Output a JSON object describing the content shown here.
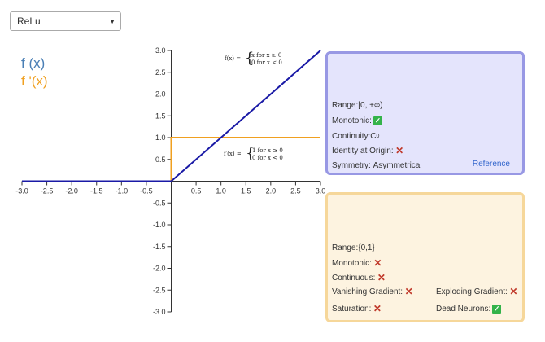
{
  "dropdown": {
    "selected": "ReLu"
  },
  "legend": {
    "f": "f (x)",
    "fprime": "f '(x)"
  },
  "formulas": {
    "f_lhs": "f(x) =",
    "f_case1": "x    for x ≥ 0",
    "f_case2": "0    for x < 0",
    "fp_lhs": "f′(x) =",
    "fp_case1": "1    for x ≥ 0",
    "fp_case2": "0    for x < 0"
  },
  "colors": {
    "f_line": "#1a1aa6",
    "fp_line": "#f0a020",
    "f_legend": "#4a7fb5"
  },
  "chart_data": {
    "type": "line",
    "xlim": [
      -3,
      3
    ],
    "ylim": [
      -3,
      3
    ],
    "x_ticks": [
      "-3.0",
      "-2.5",
      "-2.0",
      "-1.5",
      "-1.0",
      "-0.5",
      "0.5",
      "1.0",
      "1.5",
      "2.0",
      "2.5",
      "3.0"
    ],
    "y_ticks": [
      "3.0",
      "2.5",
      "2.0",
      "1.5",
      "1.0",
      "0.5",
      "-0.5",
      "-1.0",
      "-1.5",
      "-2.0",
      "-2.5",
      "-3.0"
    ],
    "series": [
      {
        "x": [
          -3,
          0,
          3
        ],
        "y": [
          0,
          0,
          3
        ]
      },
      {
        "x": [
          -3,
          0,
          0,
          3
        ],
        "y": [
          0,
          0,
          1,
          1
        ]
      }
    ]
  },
  "panel_f": {
    "range_label": "Range:",
    "range_value": "[0, +∞)",
    "monotonic_label": "Monotonic:",
    "monotonic": "✓",
    "continuity_label": "Continuity:",
    "continuity_value": "C",
    "continuity_sup": "0",
    "identity_label": "Identity at Origin:",
    "identity": "✕",
    "symmetry_label": "Symmetry:",
    "symmetry_value": "Asymmetrical",
    "reference": "Reference"
  },
  "panel_fp": {
    "range_label": "Range:",
    "range_value": "{0,1}",
    "monotonic_label": "Monotonic:",
    "monotonic": "✕",
    "continuous_label": "Continuous:",
    "continuous": "✕",
    "vanishing_label": "Vanishing Gradient:",
    "vanishing": "✕",
    "exploding_label": "Exploding Gradient:",
    "exploding": "✕",
    "saturation_label": "Saturation:",
    "saturation": "✕",
    "dead_label": "Dead Neurons:",
    "dead": "✓"
  }
}
